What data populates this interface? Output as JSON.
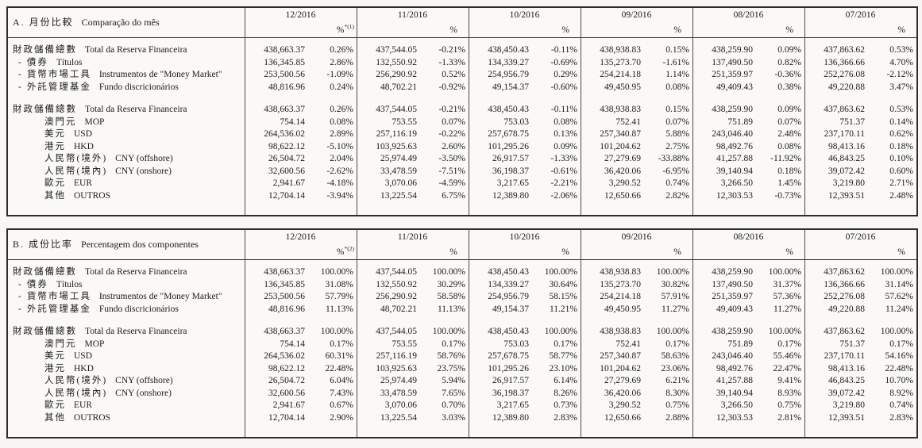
{
  "colors": {
    "paper": "#f8f7f3",
    "ink": "#1b1b1b",
    "border": "#2d2d2d",
    "grid": "#4a4a4a"
  },
  "tables": [
    {
      "id": "A",
      "title_zh": "A. 月份比較",
      "title_pt": "Comparação do mês",
      "columns": [
        {
          "month": "12/2016",
          "pct": "%",
          "sup": "*(1)"
        },
        {
          "month": "11/2016",
          "pct": "%"
        },
        {
          "month": "10/2016",
          "pct": "%"
        },
        {
          "month": "09/2016",
          "pct": "%"
        },
        {
          "month": "08/2016",
          "pct": "%"
        },
        {
          "month": "07/2016",
          "pct": "%"
        }
      ],
      "sections": [
        {
          "rows": [
            {
              "style": "main",
              "zh": "財政儲備總數",
              "pt": "Total da Reserva Financeira",
              "cells": [
                [
                  "438,663.37",
                  "0.26%"
                ],
                [
                  "437,544.05",
                  "-0.21%"
                ],
                [
                  "438,450.43",
                  "-0.11%"
                ],
                [
                  "438,938.83",
                  "0.15%"
                ],
                [
                  "438,259.90",
                  "0.09%"
                ],
                [
                  "437,863.62",
                  "0.53%"
                ]
              ]
            },
            {
              "style": "dash",
              "prefix": "-",
              "zh": "債券",
              "pt": "Títulos",
              "cells": [
                [
                  "136,345.85",
                  "2.86%"
                ],
                [
                  "132,550.92",
                  "-1.33%"
                ],
                [
                  "134,339.27",
                  "-0.69%"
                ],
                [
                  "135,273.70",
                  "-1.61%"
                ],
                [
                  "137,490.50",
                  "0.82%"
                ],
                [
                  "136,366.66",
                  "4.70%"
                ]
              ]
            },
            {
              "style": "dash",
              "prefix": "-",
              "zh": "貨幣市場工具",
              "pt": "Instrumentos de \"Money Market\"",
              "cells": [
                [
                  "253,500.56",
                  "-1.09%"
                ],
                [
                  "256,290.92",
                  "0.52%"
                ],
                [
                  "254,956.79",
                  "0.29%"
                ],
                [
                  "254,214.18",
                  "1.14%"
                ],
                [
                  "251,359.97",
                  "-0.36%"
                ],
                [
                  "252,276.08",
                  "-2.12%"
                ]
              ]
            },
            {
              "style": "dash",
              "prefix": "-",
              "zh": "外託管理基金",
              "pt": "Fundo discricionários",
              "cells": [
                [
                  "48,816.96",
                  "0.24%"
                ],
                [
                  "48,702.21",
                  "-0.92%"
                ],
                [
                  "49,154.37",
                  "-0.60%"
                ],
                [
                  "49,450.95",
                  "0.08%"
                ],
                [
                  "49,409.43",
                  "0.38%"
                ],
                [
                  "49,220.88",
                  "3.47%"
                ]
              ]
            }
          ]
        },
        {
          "rows": [
            {
              "style": "main",
              "zh": "財政儲備總數",
              "pt": "Total da Reserva Financeira",
              "cells": [
                [
                  "438,663.37",
                  "0.26%"
                ],
                [
                  "437,544.05",
                  "-0.21%"
                ],
                [
                  "438,450.43",
                  "-0.11%"
                ],
                [
                  "438,938.83",
                  "0.15%"
                ],
                [
                  "438,259.90",
                  "0.09%"
                ],
                [
                  "437,863.62",
                  "0.53%"
                ]
              ]
            },
            {
              "style": "indent",
              "zh": "澳門元",
              "pt": "MOP",
              "cells": [
                [
                  "754.14",
                  "0.08%"
                ],
                [
                  "753.55",
                  "0.07%"
                ],
                [
                  "753.03",
                  "0.08%"
                ],
                [
                  "752.41",
                  "0.07%"
                ],
                [
                  "751.89",
                  "0.07%"
                ],
                [
                  "751.37",
                  "0.14%"
                ]
              ]
            },
            {
              "style": "indent",
              "zh": "美元",
              "pt": "USD",
              "cells": [
                [
                  "264,536.02",
                  "2.89%"
                ],
                [
                  "257,116.19",
                  "-0.22%"
                ],
                [
                  "257,678.75",
                  "0.13%"
                ],
                [
                  "257,340.87",
                  "5.88%"
                ],
                [
                  "243,046.40",
                  "2.48%"
                ],
                [
                  "237,170.11",
                  "0.62%"
                ]
              ]
            },
            {
              "style": "indent",
              "zh": "港元",
              "pt": "HKD",
              "cells": [
                [
                  "98,622.12",
                  "-5.10%"
                ],
                [
                  "103,925.63",
                  "2.60%"
                ],
                [
                  "101,295.26",
                  "0.09%"
                ],
                [
                  "101,204.62",
                  "2.75%"
                ],
                [
                  "98,492.76",
                  "0.08%"
                ],
                [
                  "98,413.16",
                  "0.18%"
                ]
              ]
            },
            {
              "style": "indent",
              "zh": "人民幣(境外)",
              "pt": "CNY (offshore)",
              "cells": [
                [
                  "26,504.72",
                  "2.04%"
                ],
                [
                  "25,974.49",
                  "-3.50%"
                ],
                [
                  "26,917.57",
                  "-1.33%"
                ],
                [
                  "27,279.69",
                  "-33.88%"
                ],
                [
                  "41,257.88",
                  "-11.92%"
                ],
                [
                  "46,843.25",
                  "0.10%"
                ]
              ]
            },
            {
              "style": "indent",
              "zh": "人民幣(境內)",
              "pt": "CNY (onshore)",
              "cells": [
                [
                  "32,600.56",
                  "-2.62%"
                ],
                [
                  "33,478.59",
                  "-7.51%"
                ],
                [
                  "36,198.37",
                  "-0.61%"
                ],
                [
                  "36,420.06",
                  "-6.95%"
                ],
                [
                  "39,140.94",
                  "0.18%"
                ],
                [
                  "39,072.42",
                  "0.60%"
                ]
              ]
            },
            {
              "style": "indent",
              "zh": "歐元",
              "pt": "EUR",
              "cells": [
                [
                  "2,941.67",
                  "-4.18%"
                ],
                [
                  "3,070.06",
                  "-4.59%"
                ],
                [
                  "3,217.65",
                  "-2.21%"
                ],
                [
                  "3,290.52",
                  "0.74%"
                ],
                [
                  "3,266.50",
                  "1.45%"
                ],
                [
                  "3,219.80",
                  "2.71%"
                ]
              ]
            },
            {
              "style": "indent",
              "zh": "其他",
              "pt": "OUTROS",
              "cells": [
                [
                  "12,704.14",
                  "-3.94%"
                ],
                [
                  "13,225.54",
                  "6.75%"
                ],
                [
                  "12,389.80",
                  "-2.06%"
                ],
                [
                  "12,650.66",
                  "2.82%"
                ],
                [
                  "12,303.53",
                  "-0.73%"
                ],
                [
                  "12,393.51",
                  "2.48%"
                ]
              ]
            }
          ]
        }
      ]
    },
    {
      "id": "B",
      "title_zh": "B. 成份比率",
      "title_pt": "Percentagem dos componentes",
      "columns": [
        {
          "month": "12/2016",
          "pct": "%",
          "sup": "*(2)"
        },
        {
          "month": "11/2016",
          "pct": "%"
        },
        {
          "month": "10/2016",
          "pct": "%"
        },
        {
          "month": "09/2016",
          "pct": "%"
        },
        {
          "month": "08/2016",
          "pct": "%"
        },
        {
          "month": "07/2016",
          "pct": "%"
        }
      ],
      "sections": [
        {
          "rows": [
            {
              "style": "main",
              "zh": "財政儲備總數",
              "pt": "Total da Reserva Financeira",
              "cells": [
                [
                  "438,663.37",
                  "100.00%"
                ],
                [
                  "437,544.05",
                  "100.00%"
                ],
                [
                  "438,450.43",
                  "100.00%"
                ],
                [
                  "438,938.83",
                  "100.00%"
                ],
                [
                  "438,259.90",
                  "100.00%"
                ],
                [
                  "437,863.62",
                  "100.00%"
                ]
              ]
            },
            {
              "style": "dash",
              "prefix": "-",
              "zh": "債券",
              "pt": "Títulos",
              "cells": [
                [
                  "136,345.85",
                  "31.08%"
                ],
                [
                  "132,550.92",
                  "30.29%"
                ],
                [
                  "134,339.27",
                  "30.64%"
                ],
                [
                  "135,273.70",
                  "30.82%"
                ],
                [
                  "137,490.50",
                  "31.37%"
                ],
                [
                  "136,366.66",
                  "31.14%"
                ]
              ]
            },
            {
              "style": "dash",
              "prefix": "-",
              "zh": "貨幣市場工具",
              "pt": "Instrumentos de \"Money Market\"",
              "cells": [
                [
                  "253,500.56",
                  "57.79%"
                ],
                [
                  "256,290.92",
                  "58.58%"
                ],
                [
                  "254,956.79",
                  "58.15%"
                ],
                [
                  "254,214.18",
                  "57.91%"
                ],
                [
                  "251,359.97",
                  "57.36%"
                ],
                [
                  "252,276.08",
                  "57.62%"
                ]
              ]
            },
            {
              "style": "dash",
              "prefix": "-",
              "zh": "外託管理基金",
              "pt": "Fundo discricionários",
              "cells": [
                [
                  "48,816.96",
                  "11.13%"
                ],
                [
                  "48,702.21",
                  "11.13%"
                ],
                [
                  "49,154.37",
                  "11.21%"
                ],
                [
                  "49,450.95",
                  "11.27%"
                ],
                [
                  "49,409.43",
                  "11.27%"
                ],
                [
                  "49,220.88",
                  "11.24%"
                ]
              ]
            }
          ]
        },
        {
          "rows": [
            {
              "style": "main",
              "zh": "財政儲備總數",
              "pt": "Total da Reserva Financeira",
              "cells": [
                [
                  "438,663.37",
                  "100.00%"
                ],
                [
                  "437,544.05",
                  "100.00%"
                ],
                [
                  "438,450.43",
                  "100.00%"
                ],
                [
                  "438,938.83",
                  "100.00%"
                ],
                [
                  "438,259.90",
                  "100.00%"
                ],
                [
                  "437,863.62",
                  "100.00%"
                ]
              ]
            },
            {
              "style": "indent",
              "zh": "澳門元",
              "pt": "MOP",
              "cells": [
                [
                  "754.14",
                  "0.17%"
                ],
                [
                  "753.55",
                  "0.17%"
                ],
                [
                  "753.03",
                  "0.17%"
                ],
                [
                  "752.41",
                  "0.17%"
                ],
                [
                  "751.89",
                  "0.17%"
                ],
                [
                  "751.37",
                  "0.17%"
                ]
              ]
            },
            {
              "style": "indent",
              "zh": "美元",
              "pt": "USD",
              "cells": [
                [
                  "264,536.02",
                  "60.31%"
                ],
                [
                  "257,116.19",
                  "58.76%"
                ],
                [
                  "257,678.75",
                  "58.77%"
                ],
                [
                  "257,340.87",
                  "58.63%"
                ],
                [
                  "243,046.40",
                  "55.46%"
                ],
                [
                  "237,170.11",
                  "54.16%"
                ]
              ]
            },
            {
              "style": "indent",
              "zh": "港元",
              "pt": "HKD",
              "cells": [
                [
                  "98,622.12",
                  "22.48%"
                ],
                [
                  "103,925.63",
                  "23.75%"
                ],
                [
                  "101,295.26",
                  "23.10%"
                ],
                [
                  "101,204.62",
                  "23.06%"
                ],
                [
                  "98,492.76",
                  "22.47%"
                ],
                [
                  "98,413.16",
                  "22.48%"
                ]
              ]
            },
            {
              "style": "indent",
              "zh": "人民幣(境外)",
              "pt": "CNY (offshore)",
              "cells": [
                [
                  "26,504.72",
                  "6.04%"
                ],
                [
                  "25,974.49",
                  "5.94%"
                ],
                [
                  "26,917.57",
                  "6.14%"
                ],
                [
                  "27,279.69",
                  "6.21%"
                ],
                [
                  "41,257.88",
                  "9.41%"
                ],
                [
                  "46,843.25",
                  "10.70%"
                ]
              ]
            },
            {
              "style": "indent",
              "zh": "人民幣(境內)",
              "pt": "CNY (onshore)",
              "cells": [
                [
                  "32,600.56",
                  "7.43%"
                ],
                [
                  "33,478.59",
                  "7.65%"
                ],
                [
                  "36,198.37",
                  "8.26%"
                ],
                [
                  "36,420.06",
                  "8.30%"
                ],
                [
                  "39,140.94",
                  "8.93%"
                ],
                [
                  "39,072.42",
                  "8.92%"
                ]
              ]
            },
            {
              "style": "indent",
              "zh": "歐元",
              "pt": "EUR",
              "cells": [
                [
                  "2,941.67",
                  "0.67%"
                ],
                [
                  "3,070.06",
                  "0.70%"
                ],
                [
                  "3,217.65",
                  "0.73%"
                ],
                [
                  "3,290.52",
                  "0.75%"
                ],
                [
                  "3,266.50",
                  "0.75%"
                ],
                [
                  "3,219.80",
                  "0.74%"
                ]
              ]
            },
            {
              "style": "indent",
              "zh": "其他",
              "pt": "OUTROS",
              "cells": [
                [
                  "12,704.14",
                  "2.90%"
                ],
                [
                  "13,225.54",
                  "3.03%"
                ],
                [
                  "12,389.80",
                  "2.83%"
                ],
                [
                  "12,650.66",
                  "2.88%"
                ],
                [
                  "12,303.53",
                  "2.81%"
                ],
                [
                  "12,393.51",
                  "2.83%"
                ]
              ]
            }
          ]
        }
      ]
    }
  ]
}
